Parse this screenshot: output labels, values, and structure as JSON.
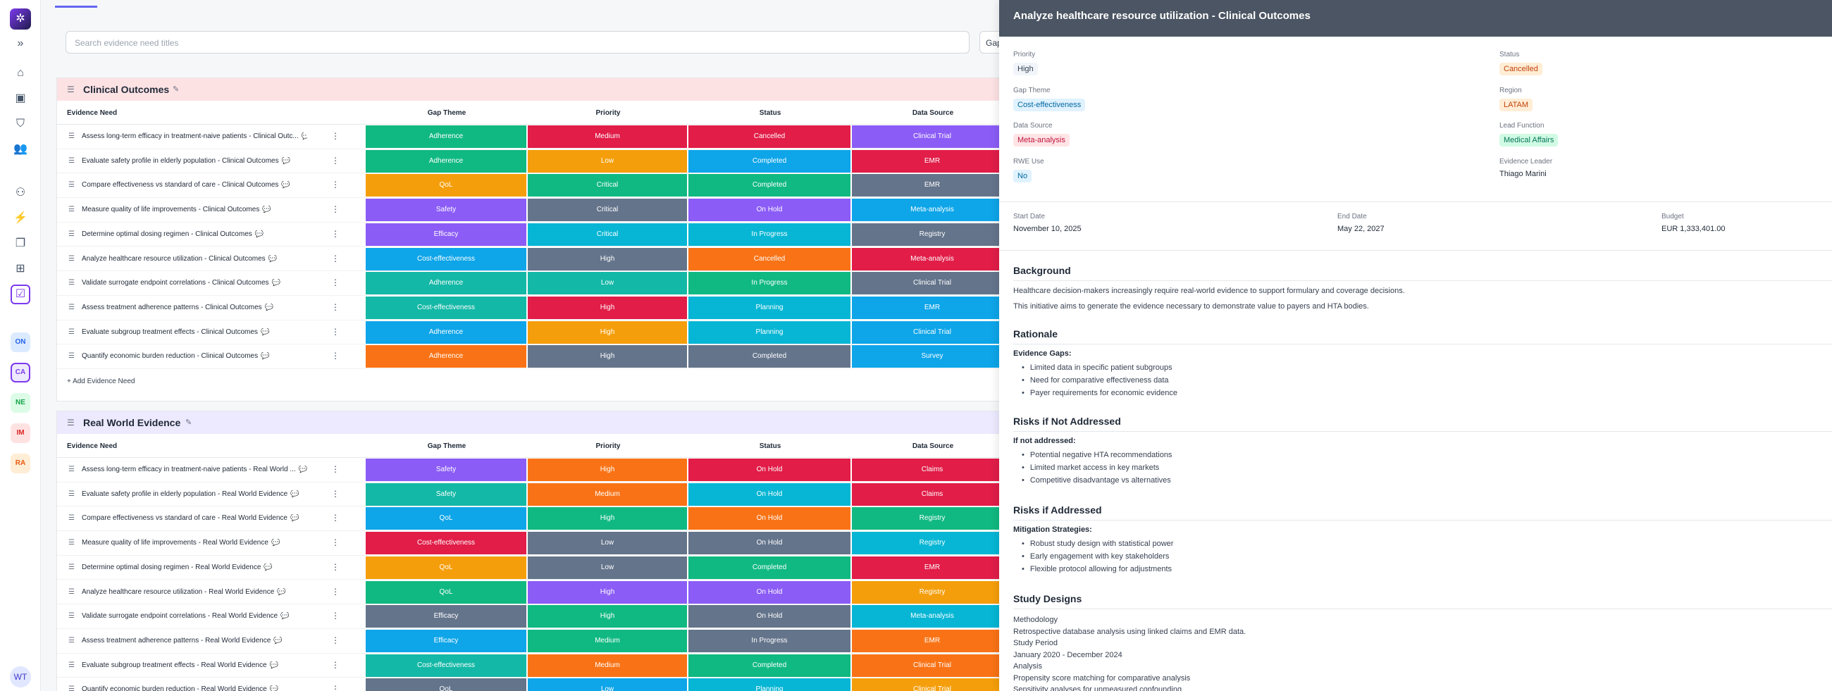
{
  "rail": {
    "avatar": "WT",
    "chips": [
      {
        "label": "ON",
        "bg": "#dbeafe",
        "fg": "#2563eb"
      },
      {
        "label": "CA",
        "bg": "#ede9fe",
        "fg": "#7c3aed"
      },
      {
        "label": "NE",
        "bg": "#dcfce7",
        "fg": "#16a34a"
      },
      {
        "label": "IM",
        "bg": "#fee2e2",
        "fg": "#dc2626"
      },
      {
        "label": "RA",
        "bg": "#ffedd5",
        "fg": "#ea580c"
      }
    ]
  },
  "search": {
    "placeholder": "Search evidence need titles"
  },
  "filter_button": "Gap",
  "columns": {
    "need": "Evidence Need",
    "theme": "Gap Theme",
    "priority": "Priority",
    "status": "Status",
    "source": "Data Source"
  },
  "add_label": "Add Evidence Need",
  "colors": {
    "Adherence": "#10b981",
    "QoL": "#f59e0b",
    "Safety": "#8b5cf6",
    "Efficacy": "#06b6d4",
    "Cost-effectiveness": "#0ea5e9",
    "Medium": "#e11d48",
    "Low": "#f59e0b",
    "Critical": "#64748b",
    "High": "#64748b",
    "Cancelled": "#e11d48",
    "Completed": "#0ea5e9",
    "On Hold": "#8b5cf6",
    "In Progress": "#06b6d4",
    "Planning": "#06b6d4",
    "Clinical Trial": "#8b5cf6",
    "EMR": "#e11d48",
    "Meta-analysis": "#06b6d4",
    "Registry": "#64748b",
    "Survey": "#0ea5e9",
    "Claims": "#e11d48"
  },
  "groups": [
    {
      "title": "Clinical Outcomes",
      "header_bg": "#fde2e4",
      "rows": [
        {
          "name": "Assess long-term efficacy in treatment-naive patients - Clinical Outc...",
          "theme": "Adherence",
          "priority": "Medium",
          "status": "Cancelled",
          "source": "Clinical Trial",
          "c": [
            "#10b981",
            "#e11d48",
            "#e11d48",
            "#8b5cf6"
          ]
        },
        {
          "name": "Evaluate safety profile in elderly population - Clinical Outcomes",
          "theme": "Adherence",
          "priority": "Low",
          "status": "Completed",
          "source": "EMR",
          "c": [
            "#10b981",
            "#f59e0b",
            "#0ea5e9",
            "#e11d48"
          ]
        },
        {
          "name": "Compare effectiveness vs standard of care - Clinical Outcomes",
          "theme": "QoL",
          "priority": "Critical",
          "status": "Completed",
          "source": "EMR",
          "c": [
            "#f59e0b",
            "#10b981",
            "#10b981",
            "#64748b"
          ]
        },
        {
          "name": "Measure quality of life improvements - Clinical Outcomes",
          "theme": "Safety",
          "priority": "Critical",
          "status": "On Hold",
          "source": "Meta-analysis",
          "c": [
            "#8b5cf6",
            "#64748b",
            "#8b5cf6",
            "#0ea5e9"
          ]
        },
        {
          "name": "Determine optimal dosing regimen - Clinical Outcomes",
          "theme": "Efficacy",
          "priority": "Critical",
          "status": "In Progress",
          "source": "Registry",
          "c": [
            "#8b5cf6",
            "#06b6d4",
            "#06b6d4",
            "#64748b"
          ]
        },
        {
          "name": "Analyze healthcare resource utilization - Clinical Outcomes",
          "theme": "Cost-effectiveness",
          "priority": "High",
          "status": "Cancelled",
          "source": "Meta-analysis",
          "c": [
            "#0ea5e9",
            "#64748b",
            "#f97316",
            "#e11d48"
          ]
        },
        {
          "name": "Validate surrogate endpoint correlations - Clinical Outcomes",
          "theme": "Adherence",
          "priority": "Low",
          "status": "In Progress",
          "source": "Clinical Trial",
          "c": [
            "#14b8a6",
            "#14b8a6",
            "#10b981",
            "#64748b"
          ]
        },
        {
          "name": "Assess treatment adherence patterns - Clinical Outcomes",
          "theme": "Cost-effectiveness",
          "priority": "High",
          "status": "Planning",
          "source": "EMR",
          "c": [
            "#14b8a6",
            "#e11d48",
            "#06b6d4",
            "#0ea5e9"
          ]
        },
        {
          "name": "Evaluate subgroup treatment effects - Clinical Outcomes",
          "theme": "Adherence",
          "priority": "High",
          "status": "Planning",
          "source": "Clinical Trial",
          "c": [
            "#0ea5e9",
            "#f59e0b",
            "#06b6d4",
            "#0ea5e9"
          ]
        },
        {
          "name": "Quantify economic burden reduction - Clinical Outcomes",
          "theme": "Adherence",
          "priority": "High",
          "status": "Completed",
          "source": "Survey",
          "c": [
            "#f97316",
            "#64748b",
            "#64748b",
            "#0ea5e9"
          ]
        }
      ]
    },
    {
      "title": "Real World Evidence",
      "header_bg": "#ede9fe",
      "rows": [
        {
          "name": "Assess long-term efficacy in treatment-naive patients - Real World ...",
          "theme": "Safety",
          "priority": "High",
          "status": "On Hold",
          "source": "Claims",
          "c": [
            "#8b5cf6",
            "#f97316",
            "#e11d48",
            "#e11d48"
          ]
        },
        {
          "name": "Evaluate safety profile in elderly population - Real World Evidence",
          "theme": "Safety",
          "priority": "Medium",
          "status": "On Hold",
          "source": "Claims",
          "c": [
            "#14b8a6",
            "#f97316",
            "#06b6d4",
            "#e11d48"
          ]
        },
        {
          "name": "Compare effectiveness vs standard of care - Real World Evidence",
          "theme": "QoL",
          "priority": "High",
          "status": "On Hold",
          "source": "Registry",
          "c": [
            "#0ea5e9",
            "#10b981",
            "#f97316",
            "#10b981"
          ]
        },
        {
          "name": "Measure quality of life improvements - Real World Evidence",
          "theme": "Cost-effectiveness",
          "priority": "Low",
          "status": "On Hold",
          "source": "Registry",
          "c": [
            "#e11d48",
            "#64748b",
            "#64748b",
            "#06b6d4"
          ]
        },
        {
          "name": "Determine optimal dosing regimen - Real World Evidence",
          "theme": "QoL",
          "priority": "Low",
          "status": "Completed",
          "source": "EMR",
          "c": [
            "#f59e0b",
            "#64748b",
            "#10b981",
            "#e11d48"
          ]
        },
        {
          "name": "Analyze healthcare resource utilization - Real World Evidence",
          "theme": "QoL",
          "priority": "High",
          "status": "On Hold",
          "source": "Registry",
          "c": [
            "#10b981",
            "#8b5cf6",
            "#8b5cf6",
            "#f59e0b"
          ]
        },
        {
          "name": "Validate surrogate endpoint correlations - Real World Evidence",
          "theme": "Efficacy",
          "priority": "High",
          "status": "On Hold",
          "source": "Meta-analysis",
          "c": [
            "#64748b",
            "#10b981",
            "#64748b",
            "#06b6d4"
          ]
        },
        {
          "name": "Assess treatment adherence patterns - Real World Evidence",
          "theme": "Efficacy",
          "priority": "Medium",
          "status": "In Progress",
          "source": "EMR",
          "c": [
            "#0ea5e9",
            "#10b981",
            "#64748b",
            "#f97316"
          ]
        },
        {
          "name": "Evaluate subgroup treatment effects - Real World Evidence",
          "theme": "Cost-effectiveness",
          "priority": "Medium",
          "status": "Completed",
          "source": "Clinical Trial",
          "c": [
            "#14b8a6",
            "#f97316",
            "#10b981",
            "#f97316"
          ]
        },
        {
          "name": "Quantify economic burden reduction - Real World Evidence",
          "theme": "QoL",
          "priority": "Low",
          "status": "Planning",
          "source": "Clinical Trial",
          "c": [
            "#64748b",
            "#0ea5e9",
            "#06b6d4",
            "#f59e0b"
          ]
        }
      ]
    }
  ],
  "panel": {
    "title": "Analyze healthcare resource utilization - Clinical Outcomes",
    "fields_left": [
      {
        "label": "Priority",
        "value": "High",
        "bg": "#f1f5f9",
        "fg": "#334155"
      },
      {
        "label": "Gap Theme",
        "value": "Cost-effectiveness",
        "bg": "#e0f2fe",
        "fg": "#0369a1"
      },
      {
        "label": "Data Source",
        "value": "Meta-analysis",
        "bg": "#ffe4e6",
        "fg": "#be123c"
      },
      {
        "label": "RWE Use",
        "value": "No",
        "bg": "#e0f2fe",
        "fg": "#0369a1"
      }
    ],
    "fields_right": [
      {
        "label": "Status",
        "value": "Cancelled",
        "bg": "#ffedd5",
        "fg": "#c2410c"
      },
      {
        "label": "Region",
        "value": "LATAM",
        "bg": "#ffedd5",
        "fg": "#c2410c"
      },
      {
        "label": "Lead Function",
        "value": "Medical Affairs",
        "bg": "#d1fae5",
        "fg": "#047857"
      }
    ],
    "leader": {
      "label": "Evidence Leader",
      "value": "Thiago Marini"
    },
    "dates": [
      {
        "label": "Start Date",
        "value": "November 10, 2025"
      },
      {
        "label": "End Date",
        "value": "May 22, 2027"
      },
      {
        "label": "Budget",
        "value": "EUR 1,333,401.00"
      }
    ],
    "background": {
      "title": "Background",
      "p1": "Healthcare decision-makers increasingly require real-world evidence to support formulary and coverage decisions.",
      "p2": "This initiative aims to generate the evidence necessary to demonstrate value to payers and HTA bodies."
    },
    "rationale": {
      "title": "Rationale",
      "sub": "Evidence Gaps:",
      "items": [
        "Limited data in specific patient subgroups",
        "Need for comparative effectiveness data",
        "Payer requirements for economic evidence"
      ]
    },
    "risks_not": {
      "title": "Risks if Not Addressed",
      "sub": "If not addressed:",
      "items": [
        "Potential negative HTA recommendations",
        "Limited market access in key markets",
        "Competitive disadvantage vs alternatives"
      ]
    },
    "risks_addr": {
      "title": "Risks if Addressed",
      "sub": "Mitigation Strategies:",
      "items": [
        "Robust study design with statistical power",
        "Early engagement with key stakeholders",
        "Flexible protocol allowing for adjustments"
      ]
    },
    "study": {
      "title": "Study Designs",
      "lines": [
        "Methodology",
        "Retrospective database analysis using linked claims and EMR data.",
        "Study Period",
        "January 2020 - December 2024",
        "Analysis",
        "Propensity score matching for comparative analysis",
        "Sensitivity analyses for unmeasured confounding"
      ]
    }
  }
}
